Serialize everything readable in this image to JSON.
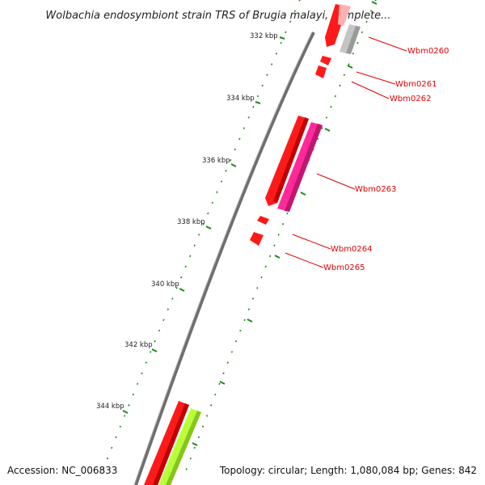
{
  "title": "Wolbachia endosymbiont strain TRS of Brugia malayi, complete...",
  "footer": {
    "accession": "Accession: NC_006833",
    "summary": "Topology: circular; Length: 1,080,084 bp; Genes: 842"
  },
  "colors": {
    "backbone": "#8a8a8a",
    "tick": "#1a8a1a",
    "gene_red": "#ff1a1a",
    "gene_pink": "#ff2a9a",
    "gene_grey": "#c4c4c4",
    "gene_lime": "#b8ff3a",
    "label": "#e00000"
  },
  "kbp_ticks": [
    {
      "label": "332 kbp"
    },
    {
      "label": "334 kbp"
    },
    {
      "label": "336 kbp"
    },
    {
      "label": "338 kbp"
    },
    {
      "label": "340 kbp"
    },
    {
      "label": "342 kbp"
    },
    {
      "label": "344 kbp"
    }
  ],
  "gene_labels": [
    {
      "name": "Wbm0260"
    },
    {
      "name": "Wbm0261"
    },
    {
      "name": "Wbm0262"
    },
    {
      "name": "Wbm0263"
    },
    {
      "name": "Wbm0264"
    },
    {
      "name": "Wbm0265"
    }
  ]
}
